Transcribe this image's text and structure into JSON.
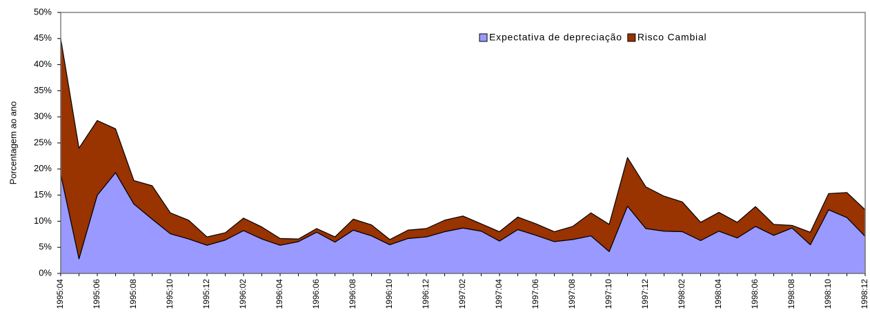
{
  "chart_data": {
    "type": "stacked_area",
    "y_label": "Porcentagem ao ano",
    "categories": [
      "1995:04",
      null,
      "1995:06",
      null,
      "1995:08",
      null,
      "1995:10",
      null,
      "1995:12",
      null,
      "1996:02",
      null,
      "1996:04",
      null,
      "1996:06",
      null,
      "1996:08",
      null,
      "1996:10",
      null,
      "1996:12",
      null,
      "1997:02",
      null,
      "1997:04",
      null,
      "1997:06",
      null,
      "1997:08",
      null,
      "1997:10",
      null,
      "1997:12",
      null,
      "1998:02",
      null,
      "1998:04",
      null,
      "1998:06",
      null,
      "1998:08",
      null,
      "1998:10",
      null,
      "1998:12"
    ],
    "series": [
      {
        "name": "Expectativa de depreciação",
        "color": "#9999ff",
        "values": [
          19,
          2.8,
          15,
          19.3,
          13.3,
          10.4,
          7.6,
          6.6,
          5.4,
          6.4,
          8.2,
          6.6,
          5.4,
          6.1,
          7.9,
          6,
          8.3,
          7.2,
          5.5,
          6.7,
          7,
          8,
          8.7,
          8.1,
          6.2,
          8.4,
          7.3,
          6.1,
          6.5,
          7.2,
          4.2,
          12.9,
          8.6,
          8.1,
          8,
          6.3,
          8.1,
          6.8,
          9,
          7.3,
          8.7,
          5.5,
          12.2,
          10.7,
          7.1
        ]
      },
      {
        "name": "Risco Cambial",
        "color": "#993300",
        "values": [
          26,
          21.2,
          14.3,
          8.4,
          4.5,
          6.4,
          4,
          3.6,
          1.6,
          1.4,
          2.4,
          2.3,
          1.3,
          0.5,
          0.7,
          1,
          2.1,
          2.1,
          1,
          1.6,
          1.6,
          2.2,
          2.3,
          1.4,
          1.8,
          2.4,
          2.2,
          1.9,
          2.5,
          4.4,
          5.2,
          9.3,
          8,
          6.7,
          5.7,
          3.5,
          3.6,
          3,
          3.8,
          2.1,
          0.5,
          2.4,
          3.1,
          4.8,
          5.1
        ]
      }
    ],
    "ylim": [
      0,
      50
    ],
    "yticks": [
      {
        "value": 0,
        "label": "0%"
      },
      {
        "value": 5,
        "label": "5%"
      },
      {
        "value": 10,
        "label": "10%"
      },
      {
        "value": 15,
        "label": "15%"
      },
      {
        "value": 20,
        "label": "20%"
      },
      {
        "value": 25,
        "label": "25%"
      },
      {
        "value": 30,
        "label": "30%"
      },
      {
        "value": 35,
        "label": "35%"
      },
      {
        "value": 40,
        "label": "40%"
      },
      {
        "value": 45,
        "label": "45%"
      },
      {
        "value": 50,
        "label": "50%"
      }
    ],
    "legend": "top-right"
  }
}
